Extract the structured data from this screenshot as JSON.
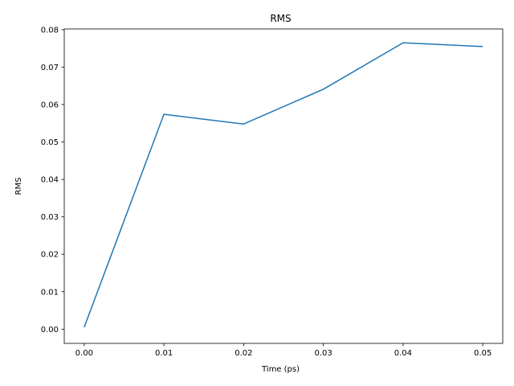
{
  "chart_data": {
    "type": "line",
    "title": "RMS",
    "xlabel": "Time (ps)",
    "ylabel": "RMS",
    "xlim": [
      -0.0025,
      0.0525
    ],
    "ylim": [
      -0.0038,
      0.0802
    ],
    "x_ticks": [
      "0.00",
      "0.01",
      "0.02",
      "0.03",
      "0.04",
      "0.05"
    ],
    "y_ticks": [
      "0.00",
      "0.01",
      "0.02",
      "0.03",
      "0.04",
      "0.05",
      "0.06",
      "0.07",
      "0.08"
    ],
    "grid": false,
    "series": [
      {
        "color": "#1f77b4",
        "x": [
          0.0,
          0.01,
          0.02,
          0.03,
          0.04,
          0.05
        ],
        "y": [
          0.0005,
          0.0574,
          0.0548,
          0.0641,
          0.0765,
          0.0755
        ]
      }
    ]
  }
}
